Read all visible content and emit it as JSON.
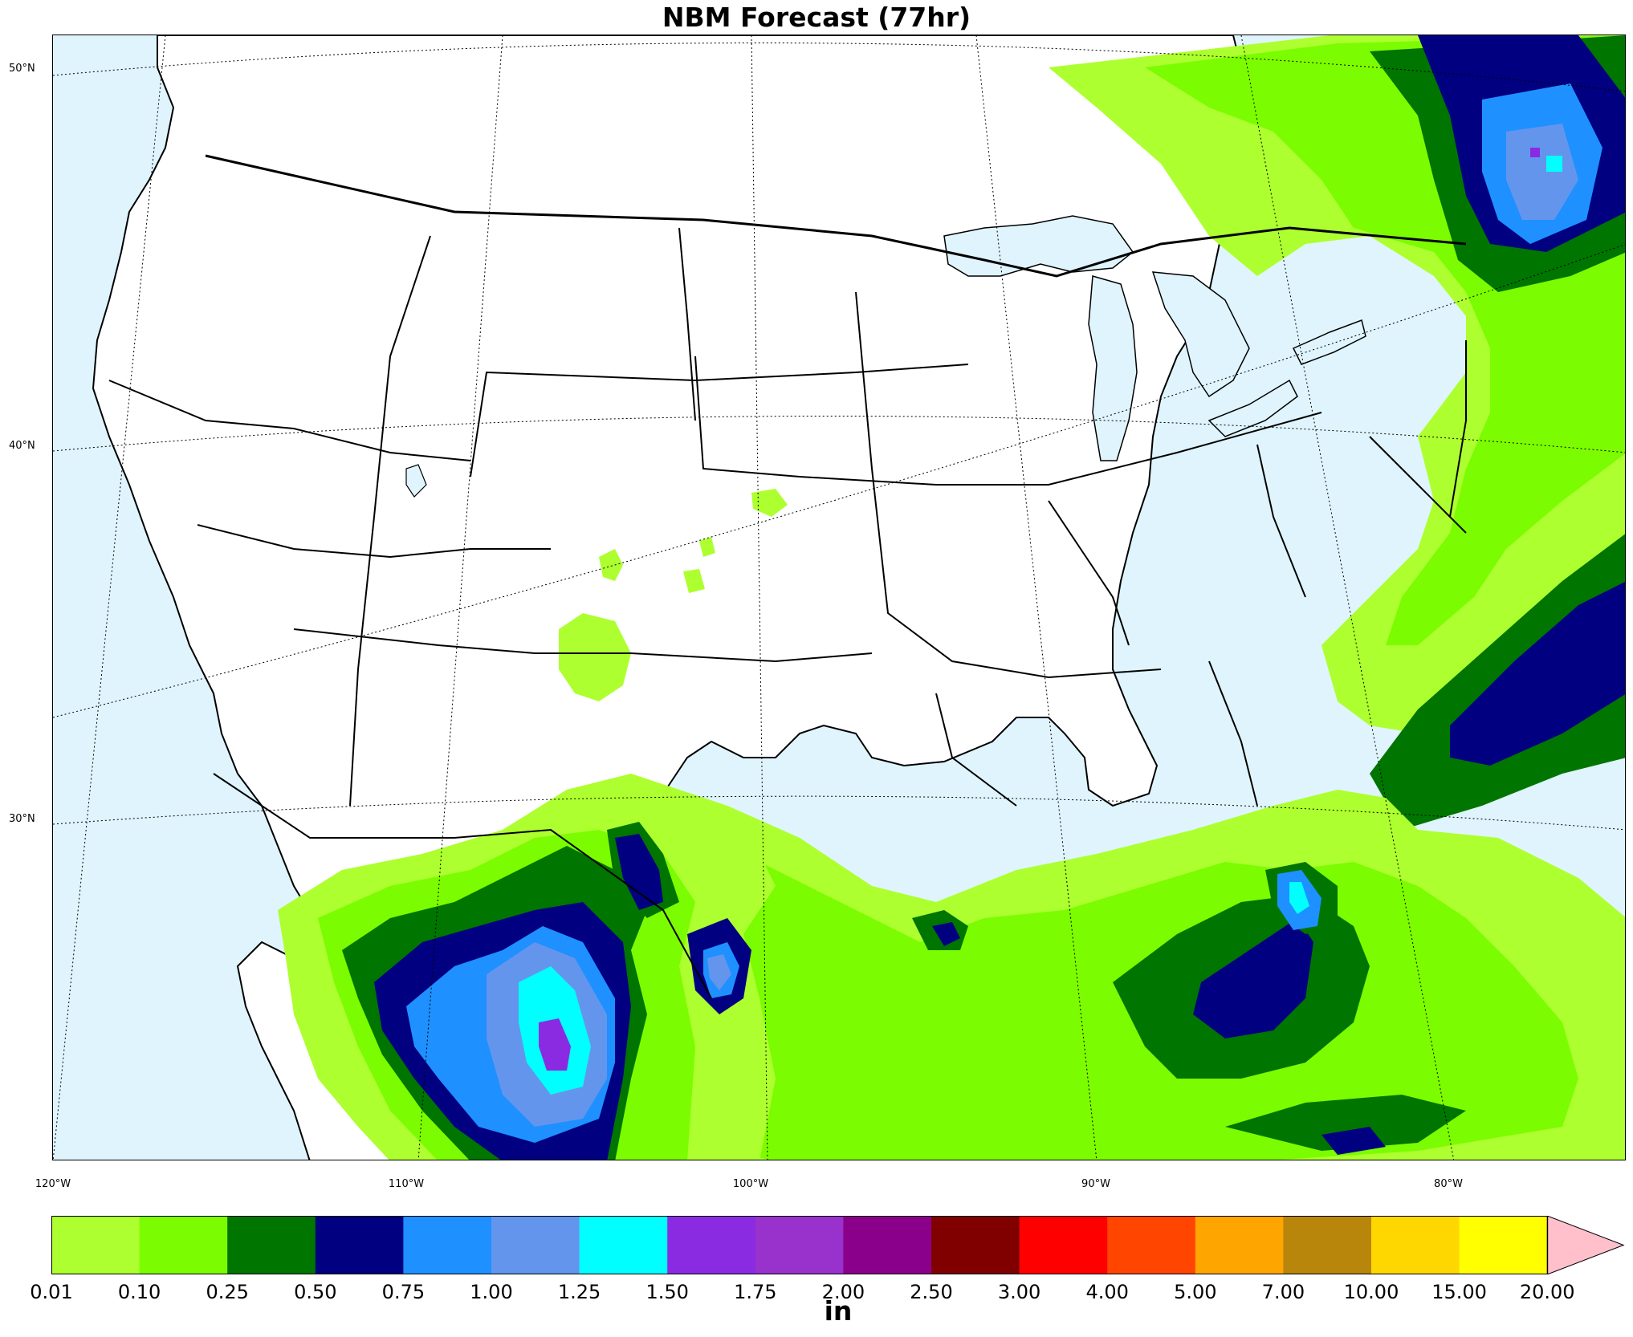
{
  "title": "NBM Forecast (77hr)",
  "units": "in",
  "colors": {
    "ocean": "#dff4fc",
    "land": "#ffffff",
    "borders": "#000000"
  },
  "latitude_labels": [
    "50°N",
    "40°N",
    "30°N"
  ],
  "longitude_labels": [
    "120°W",
    "110°W",
    "100°W",
    "90°W",
    "80°W"
  ],
  "colorbar": {
    "ticks": [
      "0.01",
      "0.10",
      "0.25",
      "0.50",
      "0.75",
      "1.00",
      "1.25",
      "1.50",
      "1.75",
      "2.00",
      "2.50",
      "3.00",
      "4.00",
      "5.00",
      "7.00",
      "10.00",
      "15.00",
      "20.00"
    ],
    "bins": [
      {
        "from": "0.01",
        "to": "0.10",
        "color": "#adff2f"
      },
      {
        "from": "0.10",
        "to": "0.25",
        "color": "#7cfc00"
      },
      {
        "from": "0.25",
        "to": "0.50",
        "color": "#007500"
      },
      {
        "from": "0.50",
        "to": "0.75",
        "color": "#000080"
      },
      {
        "from": "0.75",
        "to": "1.00",
        "color": "#1e90ff"
      },
      {
        "from": "1.00",
        "to": "1.25",
        "color": "#6495ed"
      },
      {
        "from": "1.25",
        "to": "1.50",
        "color": "#00ffff"
      },
      {
        "from": "1.50",
        "to": "1.75",
        "color": "#8a2be2"
      },
      {
        "from": "1.75",
        "to": "2.00",
        "color": "#9932cc"
      },
      {
        "from": "2.00",
        "to": "2.50",
        "color": "#8b008b"
      },
      {
        "from": "2.50",
        "to": "3.00",
        "color": "#800000"
      },
      {
        "from": "3.00",
        "to": "4.00",
        "color": "#ff0000"
      },
      {
        "from": "4.00",
        "to": "5.00",
        "color": "#ff4500"
      },
      {
        "from": "5.00",
        "to": "7.00",
        "color": "#ffa500"
      },
      {
        "from": "7.00",
        "to": "10.00",
        "color": "#b8860b"
      },
      {
        "from": "10.00",
        "to": "15.00",
        "color": "#ffd700"
      },
      {
        "from": "15.00",
        "to": "20.00",
        "color": "#ffff00"
      }
    ],
    "extend_color": "#ffc0cb"
  }
}
